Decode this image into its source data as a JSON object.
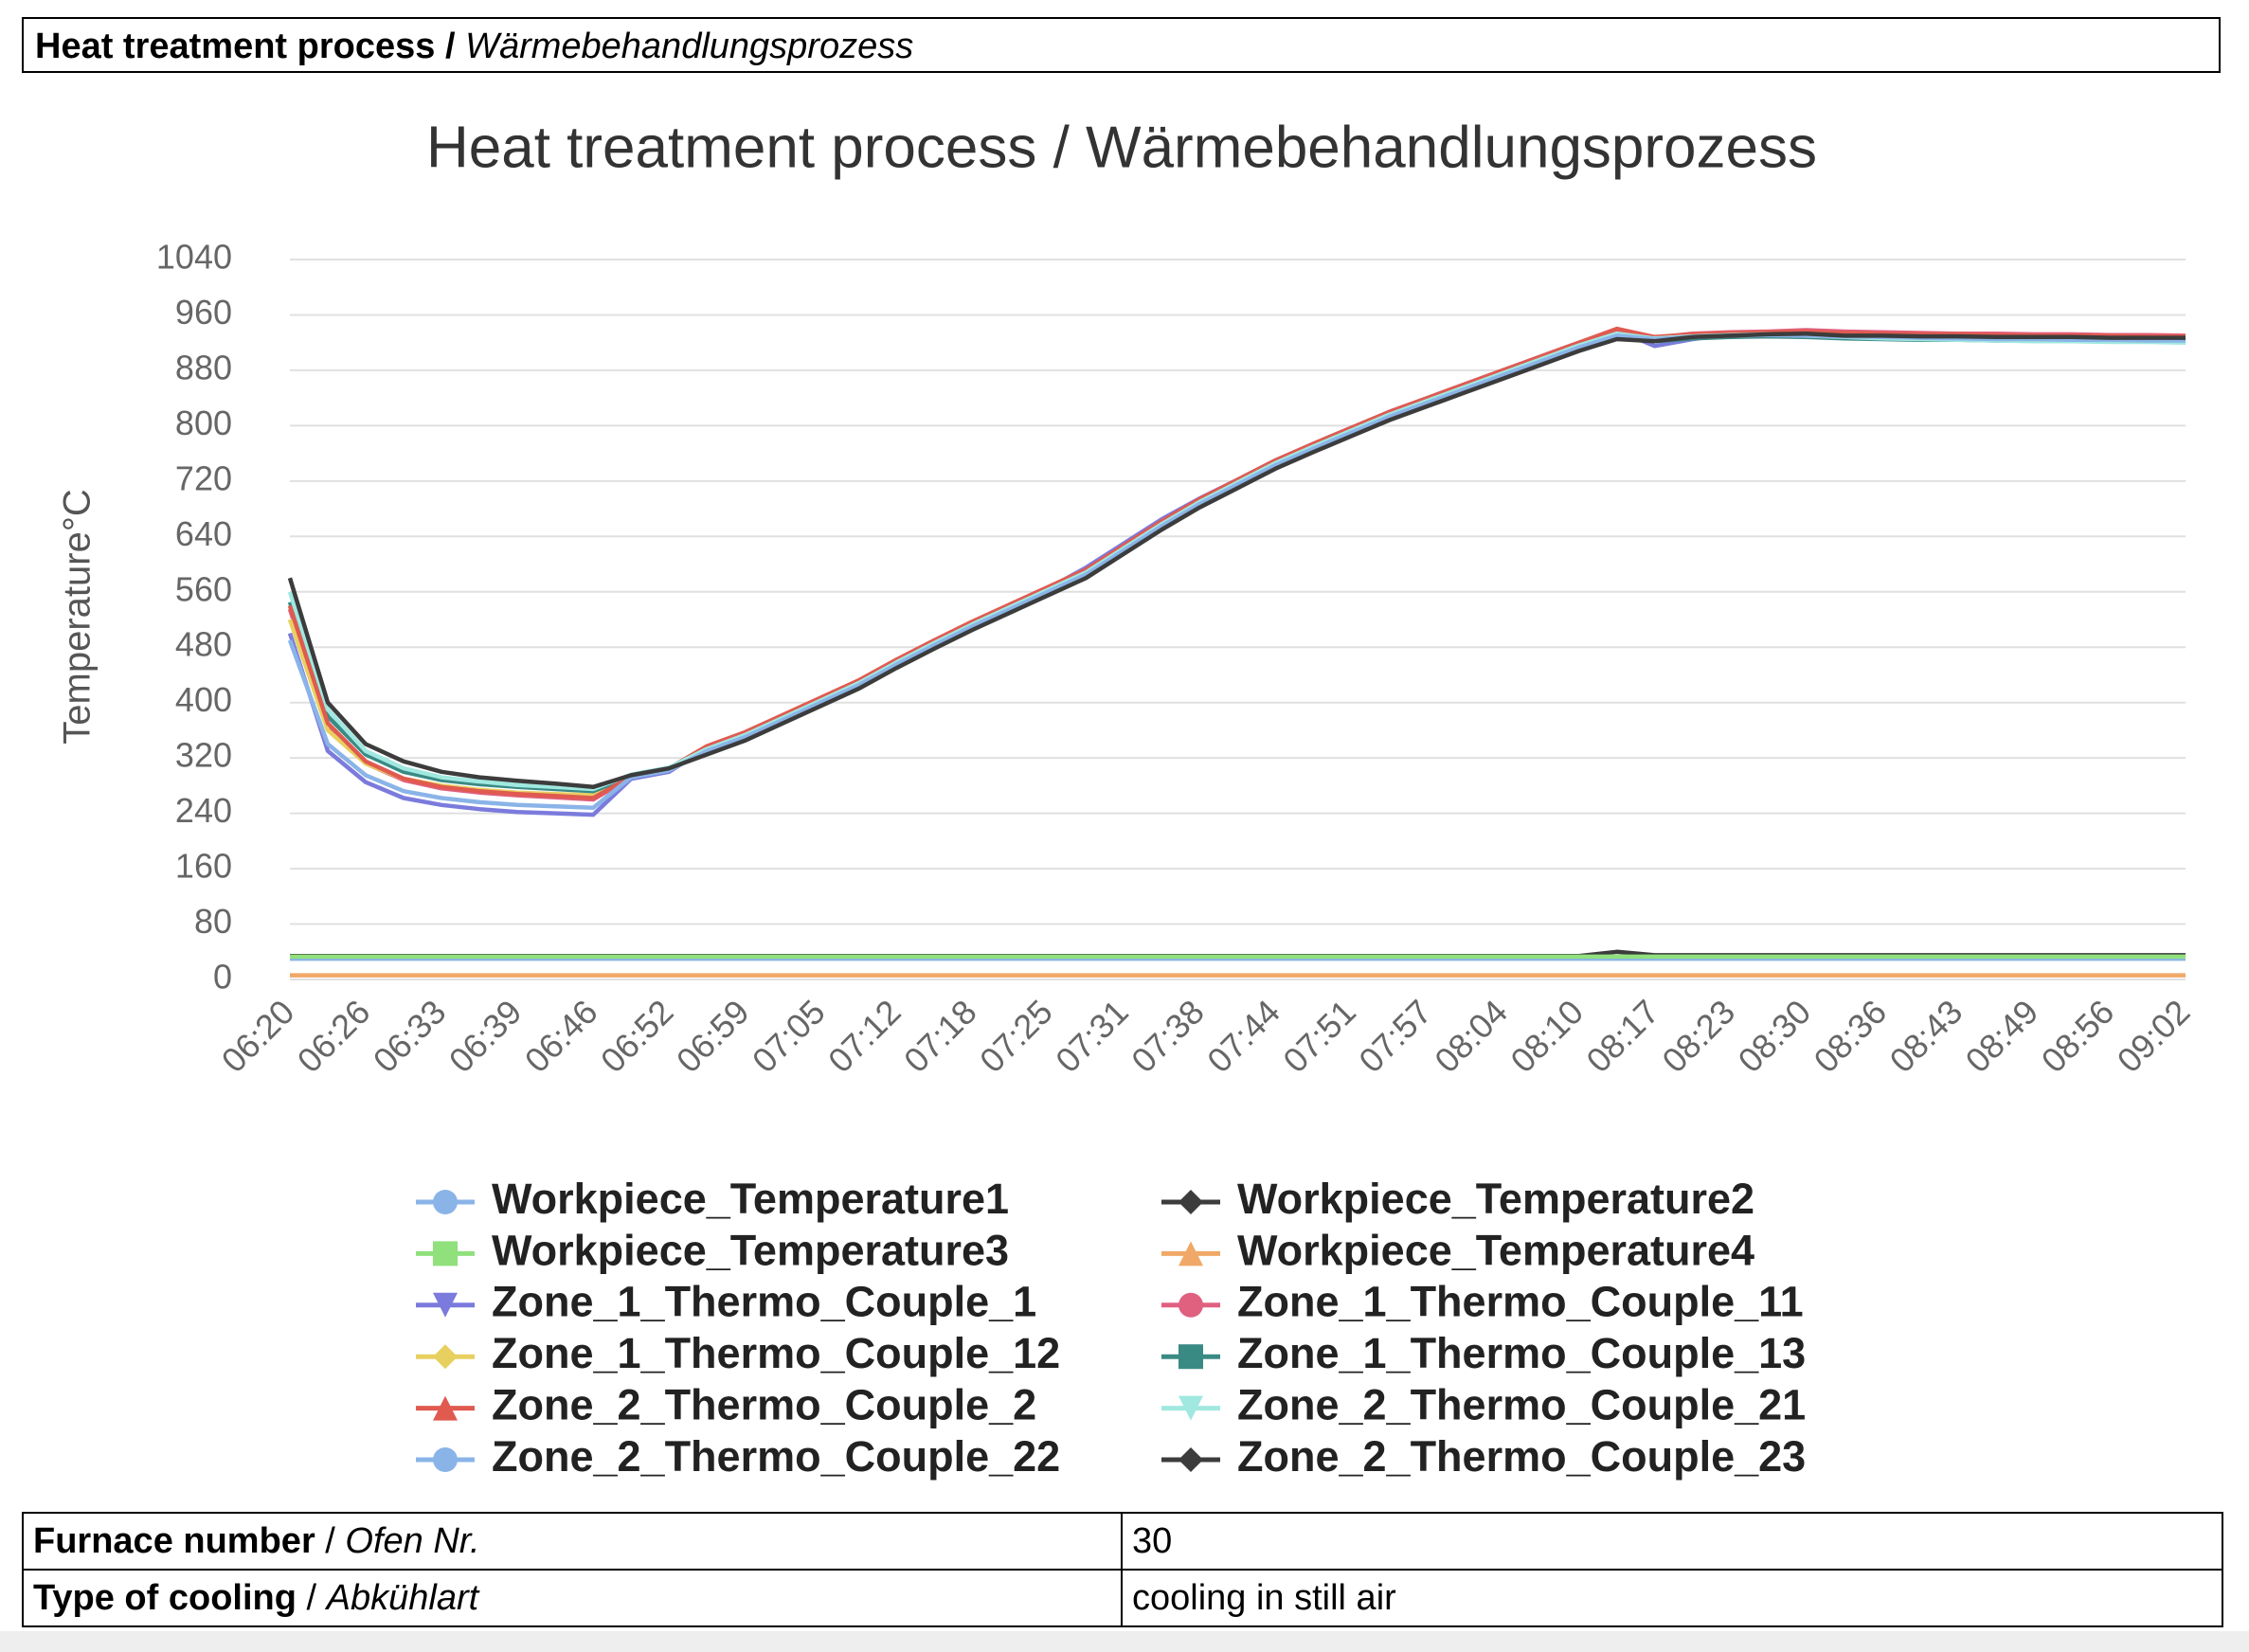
{
  "header": {
    "title_en": "Heat treatment process",
    "separator": "/",
    "title_de": "Wärmebehandlungsprozess"
  },
  "chart_data": {
    "type": "line",
    "title": "Heat treatment process / Wärmebehandlungsprozess",
    "y_label": "Temperature°C",
    "categories": [
      "06:20",
      null,
      "06:26",
      null,
      "06:33",
      null,
      "06:39",
      null,
      "06:46",
      null,
      "06:52",
      null,
      "06:59",
      null,
      "07:05",
      null,
      "07:12",
      null,
      "07:18",
      null,
      "07:25",
      null,
      "07:31",
      null,
      "07:38",
      null,
      "07:44",
      null,
      "07:51",
      null,
      "07:57",
      null,
      "08:04",
      null,
      "08:10",
      null,
      "08:17",
      null,
      "08:23",
      null,
      "08:30",
      null,
      "08:36",
      null,
      "08:43",
      null,
      "08:49",
      null,
      "08:56",
      null,
      "09:02"
    ],
    "ylim": [
      0,
      1040
    ],
    "yticks": [
      0,
      80,
      160,
      240,
      320,
      400,
      480,
      560,
      640,
      720,
      800,
      880,
      960,
      1040
    ],
    "grid": true,
    "series": [
      {
        "name": "Workpiece_Temperature1",
        "color": "#8ab4e8",
        "marker": "circle",
        "values": [
          30,
          30,
          30,
          30,
          30,
          30,
          30,
          30,
          30,
          30,
          30,
          30,
          30,
          30,
          30,
          30,
          30,
          30,
          30,
          30,
          30,
          30,
          30,
          30,
          30,
          30,
          30,
          30,
          30,
          30,
          30,
          30,
          30,
          30,
          30,
          30,
          30,
          30,
          30,
          30,
          30,
          30,
          30,
          30,
          30,
          30,
          30,
          30,
          30,
          30,
          30
        ]
      },
      {
        "name": "Workpiece_Temperature2",
        "color": "#3c3c3c",
        "marker": "diamond",
        "values": [
          34,
          34,
          34,
          34,
          34,
          34,
          34,
          34,
          34,
          34,
          34,
          34,
          34,
          34,
          34,
          34,
          34,
          34,
          34,
          34,
          34,
          34,
          34,
          34,
          34,
          34,
          34,
          34,
          34,
          34,
          34,
          34,
          34,
          34,
          34,
          40,
          35,
          35,
          35,
          35,
          35,
          35,
          35,
          35,
          35,
          35,
          35,
          35,
          35,
          35,
          35
        ]
      },
      {
        "name": "Workpiece_Temperature3",
        "color": "#90e07c",
        "marker": "square",
        "values": [
          33,
          33,
          33,
          33,
          33,
          33,
          33,
          33,
          33,
          33,
          33,
          33,
          33,
          33,
          33,
          33,
          33,
          33,
          33,
          33,
          33,
          33,
          33,
          33,
          33,
          33,
          33,
          33,
          33,
          33,
          33,
          33,
          33,
          33,
          33,
          33,
          33,
          33,
          33,
          33,
          33,
          33,
          33,
          33,
          33,
          33,
          33,
          33,
          33,
          33,
          33
        ]
      },
      {
        "name": "Workpiece_Temperature4",
        "color": "#f0a868",
        "marker": "triangle",
        "values": [
          6,
          6,
          6,
          6,
          6,
          6,
          6,
          6,
          6,
          6,
          6,
          6,
          6,
          6,
          6,
          6,
          6,
          6,
          6,
          6,
          6,
          6,
          6,
          6,
          6,
          6,
          6,
          6,
          6,
          6,
          6,
          6,
          6,
          6,
          6,
          6,
          6,
          6,
          6,
          6,
          6,
          6,
          6,
          6,
          6,
          6,
          6,
          6,
          6,
          6,
          6
        ]
      },
      {
        "name": "Zone_1_Thermo_Couple_1",
        "color": "#7b7bdd",
        "marker": "triangle-down",
        "values": [
          500,
          330,
          285,
          262,
          252,
          246,
          242,
          240,
          238,
          290,
          300,
          335,
          355,
          380,
          405,
          430,
          460,
          488,
          515,
          540,
          565,
          595,
          630,
          665,
          695,
          722,
          750,
          774,
          797,
          820,
          840,
          860,
          880,
          900,
          920,
          938,
          915,
          925,
          932,
          934,
          932,
          931,
          930,
          928,
          929,
          927,
          926,
          928,
          925,
          926,
          925
        ]
      },
      {
        "name": "Zone_1_Thermo_Couple_11",
        "color": "#e06080",
        "marker": "circle",
        "values": [
          535,
          365,
          312,
          288,
          276,
          270,
          266,
          263,
          260,
          292,
          304,
          334,
          354,
          379,
          404,
          429,
          459,
          487,
          514,
          539,
          564,
          589,
          624,
          659,
          691,
          719,
          747,
          771,
          794,
          817,
          837,
          857,
          877,
          897,
          917,
          936,
          927,
          933,
          935,
          936,
          938,
          936,
          935,
          934,
          933,
          933,
          932,
          932,
          931,
          931,
          930
        ]
      },
      {
        "name": "Zone_1_Thermo_Couple_12",
        "color": "#e8d060",
        "marker": "diamond",
        "values": [
          520,
          360,
          312,
          290,
          280,
          274,
          270,
          268,
          266,
          293,
          304,
          331,
          351,
          376,
          401,
          426,
          456,
          484,
          511,
          536,
          561,
          586,
          621,
          656,
          688,
          716,
          744,
          768,
          791,
          814,
          834,
          854,
          874,
          894,
          914,
          932,
          926,
          930,
          932,
          933,
          932,
          931,
          930,
          930,
          929,
          929,
          928,
          928,
          927,
          927,
          926
        ]
      },
      {
        "name": "Zone_1_Thermo_Couple_13",
        "color": "#3a8a84",
        "marker": "square",
        "values": [
          545,
          380,
          325,
          300,
          288,
          282,
          278,
          275,
          272,
          294,
          304,
          328,
          348,
          373,
          398,
          423,
          453,
          481,
          508,
          533,
          558,
          583,
          618,
          653,
          685,
          713,
          741,
          765,
          788,
          811,
          831,
          851,
          871,
          891,
          911,
          928,
          922,
          926,
          928,
          929,
          928,
          926,
          925,
          924,
          924,
          923,
          923,
          922,
          922,
          922,
          921
        ]
      },
      {
        "name": "Zone_2_Thermo_Couple_2",
        "color": "#e05a50",
        "marker": "triangle",
        "values": [
          540,
          370,
          315,
          290,
          278,
          272,
          268,
          265,
          262,
          293,
          305,
          337,
          357,
          382,
          407,
          432,
          462,
          490,
          517,
          542,
          567,
          592,
          627,
          662,
          694,
          722,
          750,
          774,
          797,
          820,
          840,
          860,
          880,
          900,
          920,
          940,
          928,
          932,
          934,
          935,
          936,
          934,
          933,
          932,
          932,
          931,
          930,
          930,
          930,
          929,
          929
        ]
      },
      {
        "name": "Zone_2_Thermo_Couple_21",
        "color": "#a0e8e0",
        "marker": "triangle-down",
        "values": [
          560,
          390,
          330,
          305,
          292,
          286,
          281,
          278,
          275,
          296,
          306,
          333,
          353,
          378,
          403,
          428,
          458,
          486,
          513,
          538,
          563,
          588,
          623,
          658,
          690,
          718,
          746,
          770,
          793,
          816,
          836,
          856,
          876,
          896,
          916,
          933,
          926,
          929,
          931,
          932,
          930,
          928,
          926,
          925,
          924,
          923,
          922,
          922,
          921,
          921,
          920
        ]
      },
      {
        "name": "Zone_2_Thermo_Couple_22",
        "color": "#8ab4e8",
        "marker": "circle",
        "values": [
          490,
          340,
          295,
          272,
          262,
          256,
          252,
          250,
          248,
          292,
          302,
          330,
          350,
          375,
          400,
          425,
          455,
          483,
          510,
          535,
          560,
          585,
          620,
          655,
          687,
          715,
          743,
          767,
          790,
          813,
          833,
          853,
          873,
          893,
          913,
          930,
          925,
          928,
          930,
          931,
          930,
          929,
          928,
          927,
          926,
          925,
          925,
          924,
          924,
          923,
          923
        ]
      },
      {
        "name": "Zone_2_Thermo_Couple_23",
        "color": "#3c3c3c",
        "marker": "diamond",
        "values": [
          580,
          400,
          340,
          315,
          300,
          292,
          287,
          283,
          278,
          295,
          305,
          325,
          345,
          370,
          395,
          420,
          450,
          478,
          505,
          530,
          555,
          580,
          615,
          650,
          682,
          710,
          738,
          762,
          785,
          808,
          828,
          848,
          868,
          888,
          908,
          925,
          922,
          928,
          930,
          932,
          933,
          930,
          930,
          929,
          929,
          928,
          928,
          928,
          927,
          927,
          927
        ]
      }
    ]
  },
  "table": {
    "rows": [
      {
        "label_en": "Furnace number",
        "label_de": "Ofen Nr.",
        "value": 30
      },
      {
        "label_en": "Type of cooling",
        "label_de": "Abkühlart",
        "value": "cooling in still air"
      }
    ]
  }
}
